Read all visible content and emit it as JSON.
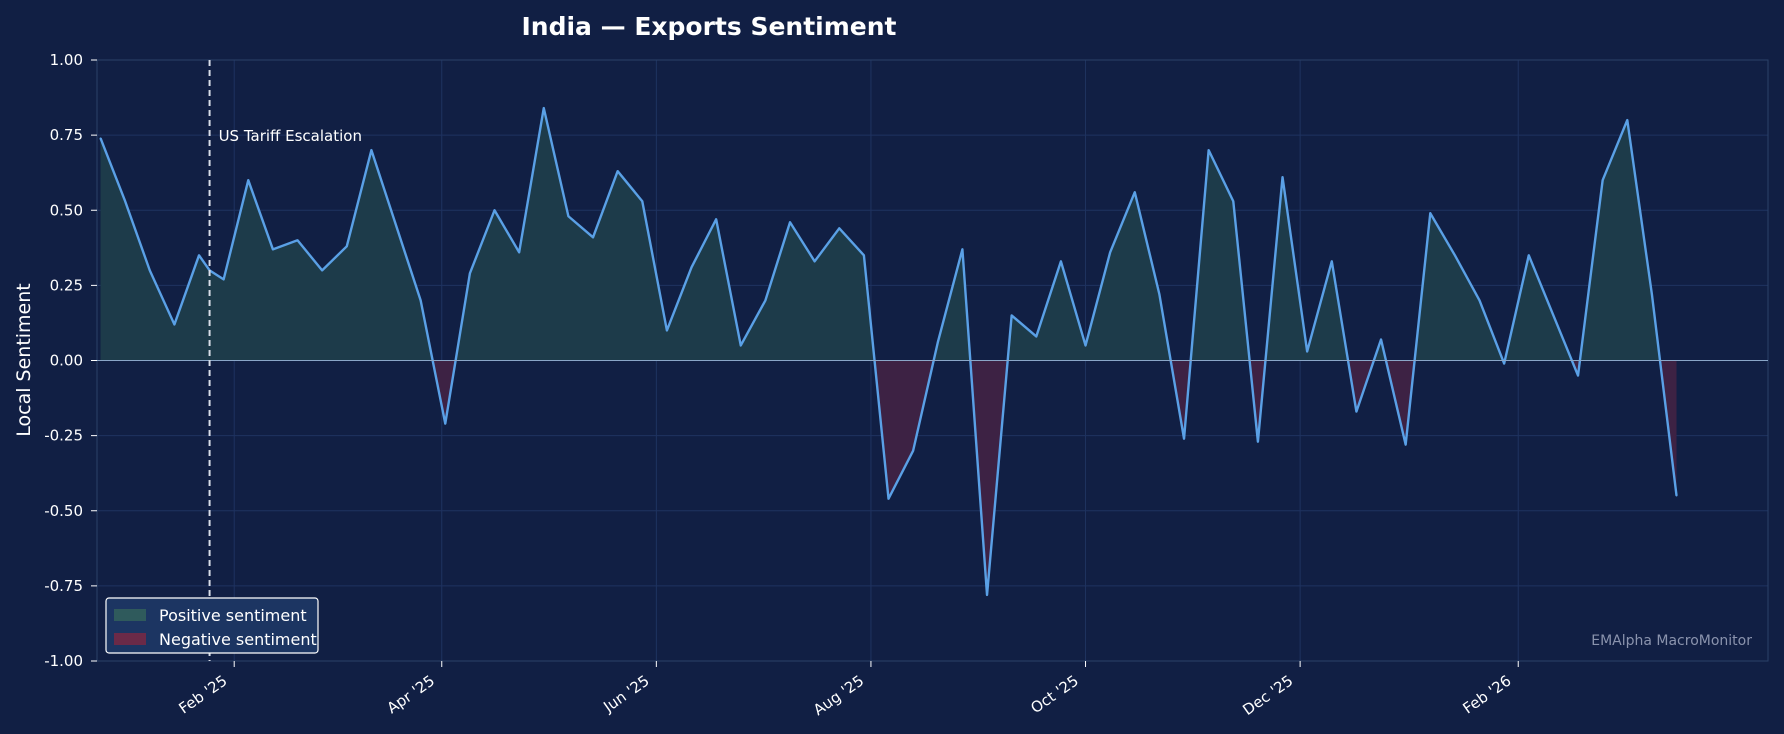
{
  "chart_data": {
    "type": "area",
    "title": "India — Exports Sentiment",
    "xlabel": "",
    "ylabel": "Local Sentiment",
    "ylim": [
      -1.0,
      1.0
    ],
    "xlim": [
      "2024-12-24",
      "2026-04-13"
    ],
    "y_ticks": [
      "1.00",
      "0.75",
      "0.50",
      "0.25",
      "0.00",
      "-0.25",
      "-0.50",
      "-0.75",
      "-1.00"
    ],
    "x_ticks": [
      {
        "date": "2025-02-01",
        "label": "Feb '25"
      },
      {
        "date": "2025-04-01",
        "label": "Apr '25"
      },
      {
        "date": "2025-06-01",
        "label": "Jun '25"
      },
      {
        "date": "2025-08-01",
        "label": "Aug '25"
      },
      {
        "date": "2025-10-01",
        "label": "Oct '25"
      },
      {
        "date": "2025-12-01",
        "label": "Dec '25"
      },
      {
        "date": "2026-02-01",
        "label": "Feb '26"
      }
    ],
    "grid": true,
    "legend": {
      "position": "bottom-left",
      "entries": [
        {
          "label": "Positive sentiment",
          "color": "#2f5a5c"
        },
        {
          "label": "Negative sentiment",
          "color": "#6b2a48"
        }
      ]
    },
    "annotations": [
      {
        "date": "2025-01-25",
        "label": "US Tariff Escalation"
      }
    ],
    "watermark": "EMAlpha MacroMonitor",
    "colors": {
      "background": "#111f44",
      "line": "#5aa0e6",
      "positive_fill": "#1d3b4a",
      "negative_fill": "#3d2244",
      "text": "#ffffff"
    },
    "series": [
      {
        "x": [
          "2024-12-25",
          "2025-01-01",
          "2025-01-08",
          "2025-01-15",
          "2025-01-22",
          "2025-01-25",
          "2025-01-29",
          "2025-02-05",
          "2025-02-12",
          "2025-02-19",
          "2025-02-26",
          "2025-03-05",
          "2025-03-12",
          "2025-03-19",
          "2025-03-26",
          "2025-04-02",
          "2025-04-09",
          "2025-04-16",
          "2025-04-23",
          "2025-04-30",
          "2025-05-07",
          "2025-05-14",
          "2025-05-21",
          "2025-05-28",
          "2025-06-04",
          "2025-06-11",
          "2025-06-18",
          "2025-06-25",
          "2025-07-02",
          "2025-07-09",
          "2025-07-16",
          "2025-07-23",
          "2025-07-30",
          "2025-08-06",
          "2025-08-13",
          "2025-08-20",
          "2025-08-27",
          "2025-09-03",
          "2025-09-10",
          "2025-09-17",
          "2025-09-24",
          "2025-10-01",
          "2025-10-08",
          "2025-10-15",
          "2025-10-22",
          "2025-10-29",
          "2025-11-05",
          "2025-11-12",
          "2025-11-19",
          "2025-11-26",
          "2025-12-03",
          "2025-12-10",
          "2025-12-17",
          "2025-12-24",
          "2025-12-31",
          "2026-01-07",
          "2026-01-14",
          "2026-01-21",
          "2026-01-28",
          "2026-02-04",
          "2026-02-11",
          "2026-02-18",
          "2026-02-25",
          "2026-03-04",
          "2026-03-11",
          "2026-03-18"
        ],
        "values": [
          0.74,
          0.53,
          0.3,
          0.12,
          0.35,
          0.3,
          0.27,
          0.6,
          0.37,
          0.4,
          0.3,
          0.38,
          0.7,
          0.45,
          0.2,
          -0.21,
          0.29,
          0.5,
          0.36,
          0.84,
          0.48,
          0.41,
          0.63,
          0.53,
          0.1,
          0.31,
          0.47,
          0.05,
          0.2,
          0.46,
          0.33,
          0.44,
          0.35,
          -0.46,
          -0.3,
          0.06,
          0.37,
          -0.78,
          0.15,
          0.08,
          0.33,
          0.05,
          0.36,
          0.56,
          0.22,
          -0.26,
          0.7,
          0.53,
          -0.27,
          0.61,
          0.03,
          0.33,
          -0.17,
          0.07,
          -0.28,
          0.49,
          0.35,
          0.2,
          -0.01,
          0.35,
          0.15,
          -0.05,
          0.6,
          0.8,
          0.22,
          -0.45
        ]
      }
    ]
  }
}
